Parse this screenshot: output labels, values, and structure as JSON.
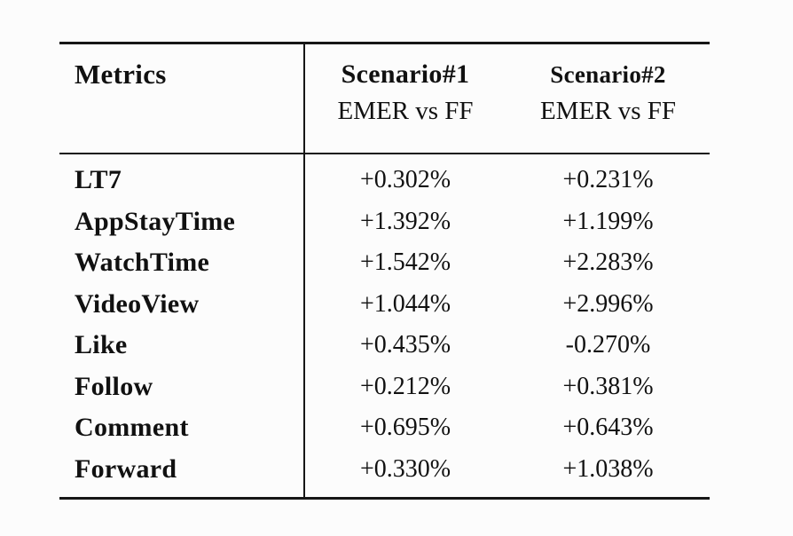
{
  "figure": {
    "header": {
      "metrics_label": "Metrics",
      "col1_title": "Scenario#1",
      "col1_subtitle": "EMER vs FF",
      "col2_title": "Scenario#2",
      "col2_subtitle": "EMER vs FF"
    },
    "rows": [
      {
        "metric": "LT7",
        "v1": "+0.302%",
        "v2": "+0.231%"
      },
      {
        "metric": "AppStayTime",
        "v1": "+1.392%",
        "v2": "+1.199%"
      },
      {
        "metric": "WatchTime",
        "v1": "+1.542%",
        "v2": "+2.283%"
      },
      {
        "metric": "VideoView",
        "v1": "+1.044%",
        "v2": "+2.996%"
      },
      {
        "metric": "Like",
        "v1": "+0.435%",
        "v2": "-0.270%"
      },
      {
        "metric": "Follow",
        "v1": "+0.212%",
        "v2": "+0.381%"
      },
      {
        "metric": "Comment",
        "v1": "+0.695%",
        "v2": "+0.643%"
      },
      {
        "metric": "Forward",
        "v1": "+0.330%",
        "v2": "+1.038%"
      }
    ],
    "colors": {
      "text": "#111111",
      "rule": "#161616",
      "background": "#fcfcfc"
    }
  }
}
